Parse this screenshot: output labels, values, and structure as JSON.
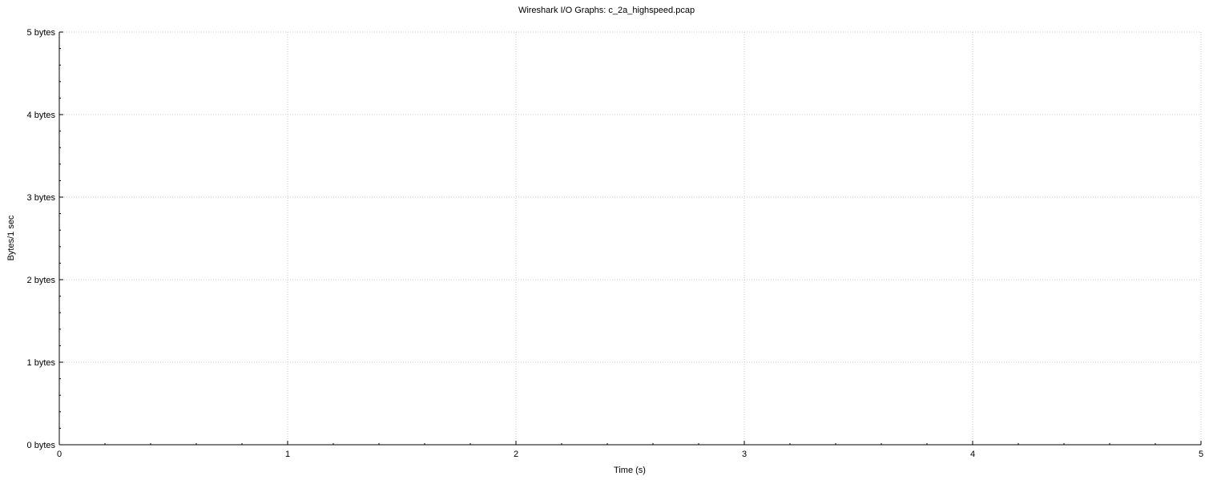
{
  "chart_data": {
    "type": "line",
    "title": "Wireshark I/O Graphs: c_2a_highspeed.pcap",
    "xlabel": "Time (s)",
    "ylabel": "Bytes/1 sec",
    "xlim": [
      0,
      5
    ],
    "ylim": [
      0,
      5
    ],
    "x_ticks": [
      {
        "value": 0,
        "label": "0"
      },
      {
        "value": 1,
        "label": "1"
      },
      {
        "value": 2,
        "label": "2"
      },
      {
        "value": 3,
        "label": "3"
      },
      {
        "value": 4,
        "label": "4"
      },
      {
        "value": 5,
        "label": "5"
      }
    ],
    "y_ticks": [
      {
        "value": 0,
        "label": "0 bytes"
      },
      {
        "value": 1,
        "label": "1 bytes"
      },
      {
        "value": 2,
        "label": "2 bytes"
      },
      {
        "value": 3,
        "label": "3 bytes"
      },
      {
        "value": 4,
        "label": "4 bytes"
      },
      {
        "value": 5,
        "label": "5 bytes"
      }
    ],
    "x_minor_per_major": 5,
    "y_minor_per_major": 5,
    "grid": true,
    "grid_style": "dotted",
    "series": []
  }
}
